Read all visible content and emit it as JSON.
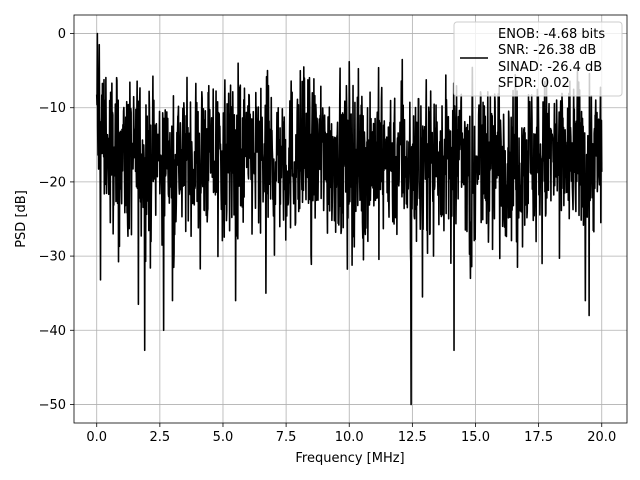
{
  "chart_data": {
    "type": "line",
    "title": "",
    "xlabel": "Frequency [MHz]",
    "ylabel": "PSD [dB]",
    "xlim": [
      -0.9,
      21.0
    ],
    "ylim": [
      -52.5,
      2.5
    ],
    "grid": true,
    "x_ticks": [
      0.0,
      2.5,
      5.0,
      7.5,
      10.0,
      12.5,
      15.0,
      17.5,
      20.0
    ],
    "x_tick_labels": [
      "0.0",
      "2.5",
      "5.0",
      "7.5",
      "10.0",
      "12.5",
      "15.0",
      "17.5",
      "20.0"
    ],
    "y_ticks": [
      0,
      -10,
      -20,
      -30,
      -40,
      -50
    ],
    "y_tick_labels": [
      "0",
      "−10",
      "−20",
      "−30",
      "−40",
      "−50"
    ],
    "legend": {
      "placement": "top-right",
      "entries": [
        "ENOB: -4.68 bits",
        "SNR: -26.38 dB",
        "SINAD: -26.4 dB",
        "SFDR: 0.02"
      ]
    },
    "series": [
      {
        "color": "#000000",
        "x_range": [
          0.0,
          20.0
        ],
        "typical_range_db": [
          -24,
          -6
        ],
        "peaks": [
          {
            "x": 0.02,
            "y": 0.0
          },
          {
            "x": 0.1,
            "y": -1.5
          },
          {
            "x": 10.0,
            "y": -3.8
          },
          {
            "x": 12.1,
            "y": -3.5
          },
          {
            "x": 5.6,
            "y": -4.0
          },
          {
            "x": 8.2,
            "y": -4.5
          }
        ],
        "dips": [
          {
            "x": 0.15,
            "y": -33.2
          },
          {
            "x": 1.65,
            "y": -36.5
          },
          {
            "x": 1.9,
            "y": -42.7
          },
          {
            "x": 2.65,
            "y": -40.0
          },
          {
            "x": 3.0,
            "y": -36.0
          },
          {
            "x": 5.5,
            "y": -36.0
          },
          {
            "x": 6.7,
            "y": -35.0
          },
          {
            "x": 12.45,
            "y": -50.0
          },
          {
            "x": 12.9,
            "y": -35.5
          },
          {
            "x": 14.15,
            "y": -42.7
          },
          {
            "x": 19.5,
            "y": -38.0
          },
          {
            "x": 19.35,
            "y": -36.0
          },
          {
            "x": 14.8,
            "y": -33.0
          }
        ]
      }
    ]
  }
}
